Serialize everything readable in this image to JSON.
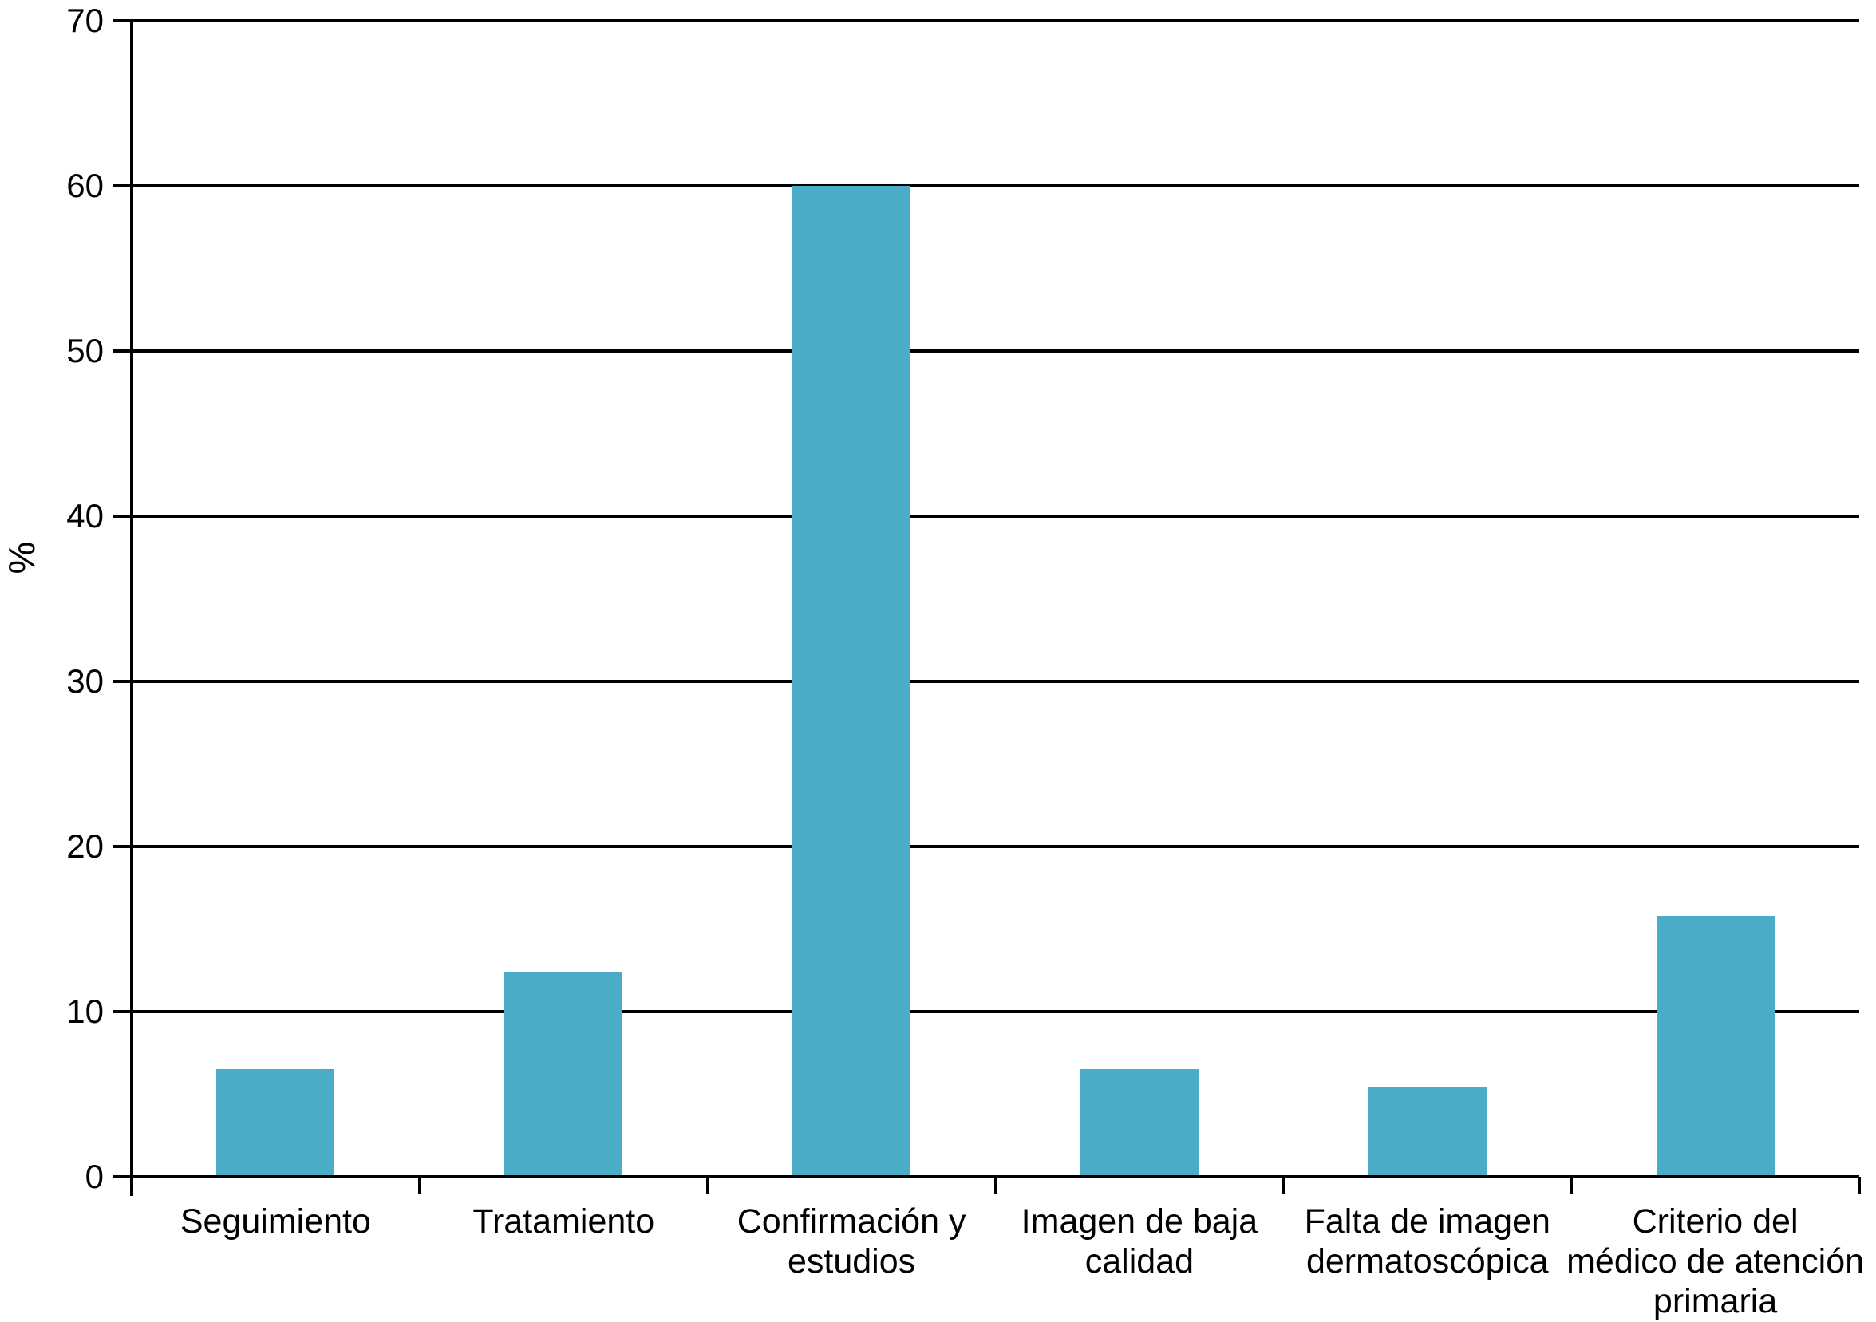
{
  "figure": {
    "background": "#ffffff"
  },
  "chart_data": {
    "type": "bar",
    "title": "",
    "xlabel": "",
    "ylabel": "%",
    "categories": [
      "Seguimiento",
      "Tratamiento",
      "Confirmación y\nestudios",
      "Imagen de baja\ncalidad",
      "Falta de imagen\ndermatoscópica",
      "Criterio del\nmédico de atención\nprimaria"
    ],
    "values": [
      6.5,
      12.4,
      60,
      6.5,
      5.4,
      15.8
    ],
    "ylim": [
      0,
      70
    ],
    "yticks": [
      0,
      10,
      20,
      30,
      40,
      50,
      60,
      70
    ],
    "grid": true,
    "legend": false,
    "bar_color": "#4aacc6",
    "axis_color": "#000000",
    "text_color": "#000000"
  }
}
